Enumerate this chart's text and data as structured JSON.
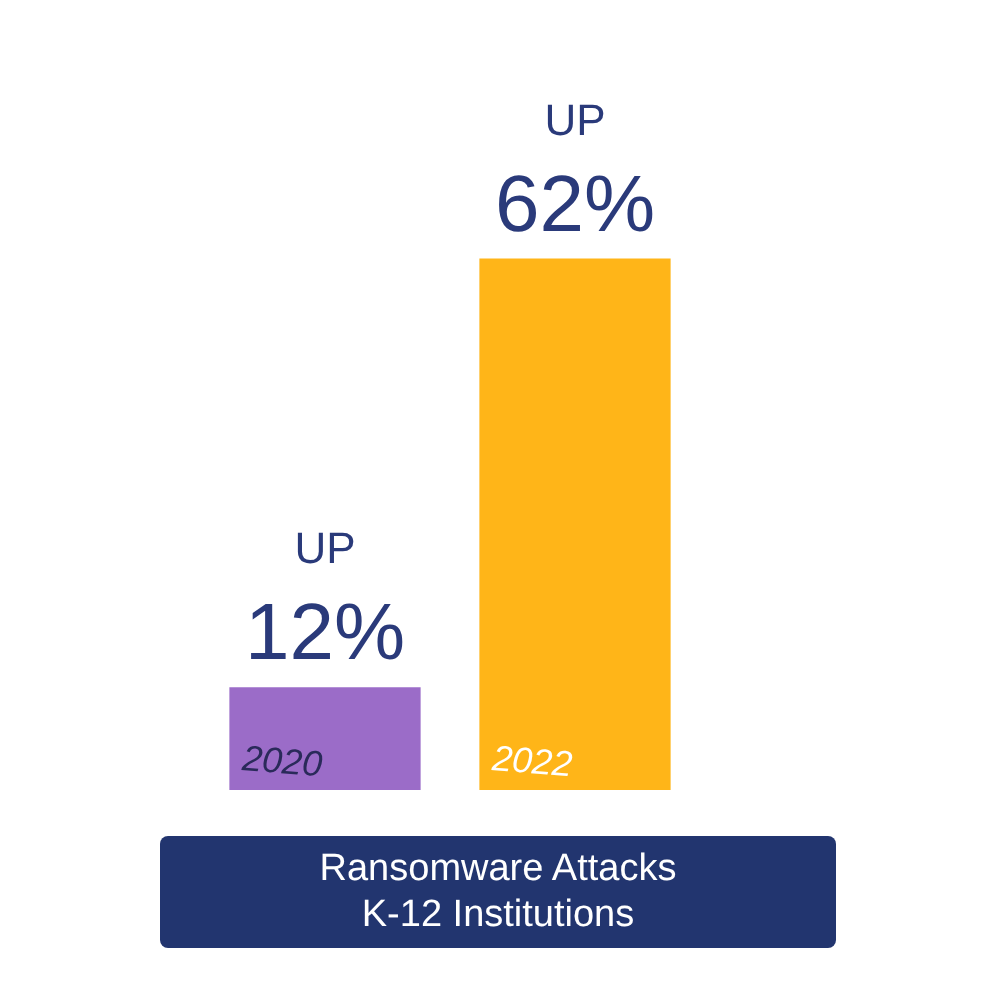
{
  "chart_data": {
    "type": "bar",
    "title": "Ransomware Attacks\nK-12 Institutions",
    "categories": [
      "2020",
      "2022"
    ],
    "values": [
      12,
      62
    ],
    "colors": [
      "#9b6cc8",
      "#ffb518"
    ],
    "value_labels": [
      "12%",
      "62%"
    ],
    "annotations": [
      {
        "text": "UP",
        "x": "2020",
        "y": 12
      },
      {
        "text": "UP",
        "x": "2022",
        "y": 62
      }
    ]
  }
}
